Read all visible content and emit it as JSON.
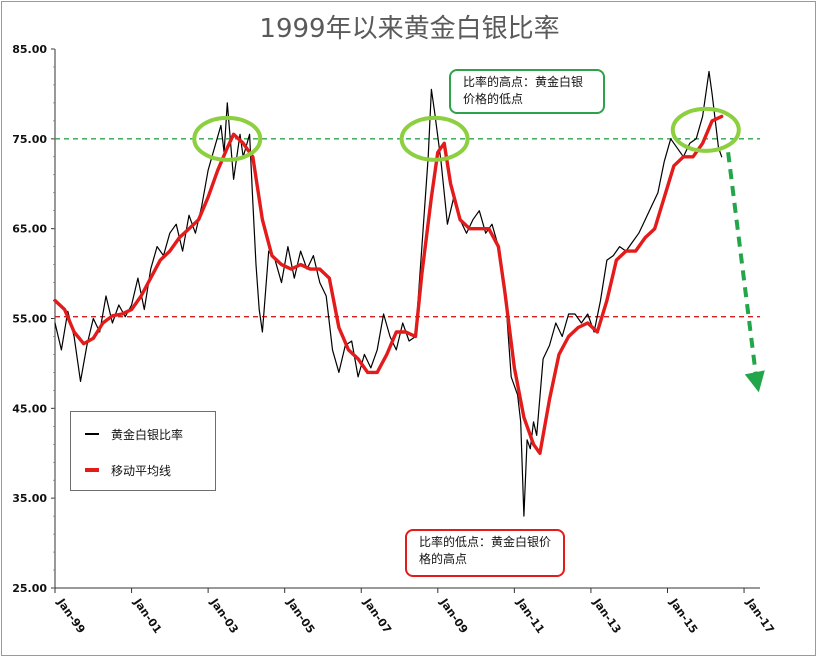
{
  "title": "1999年以来黄金白银比率",
  "legend": {
    "items": [
      {
        "label": "黄金白银比率",
        "color": "#000000"
      },
      {
        "label": "移动平均线",
        "color": "#e31b1b"
      }
    ]
  },
  "annotations": {
    "high_note": "比率的高点：黄金白银价格的低点",
    "low_note": "比率的低点：黄金白银价格的高点",
    "high_color": "#2ea24a",
    "low_color": "#e31b1b"
  },
  "chart_data": {
    "type": "line",
    "title": "1999年以来黄金白银比率",
    "xlabel": "",
    "ylabel": "",
    "x_tick_labels": [
      "Jan-99",
      "Jan-01",
      "Jan-03",
      "Jan-05",
      "Jan-07",
      "Jan-09",
      "Jan-11",
      "Jan-13",
      "Jan-15",
      "Jan-17"
    ],
    "y_tick_labels": [
      "25.00",
      "35.00",
      "45.00",
      "55.00",
      "65.00",
      "75.00",
      "85.00"
    ],
    "ylim": [
      25,
      85
    ],
    "xlim": [
      "1999-01",
      "2017-06"
    ],
    "grid": false,
    "legend_position": "bottom-left",
    "reference_lines": [
      {
        "y": 75,
        "color": "#2ea24a",
        "style": "dashed"
      },
      {
        "y": 55.2,
        "color": "#d42020",
        "style": "dashed"
      }
    ],
    "series": [
      {
        "name": "黄金白银比率",
        "color": "#000000",
        "points": [
          [
            "1999-01",
            54.5
          ],
          [
            "1999-03",
            51.5
          ],
          [
            "1999-05",
            55.8
          ],
          [
            "1999-07",
            53.0
          ],
          [
            "1999-09",
            48.0
          ],
          [
            "1999-11",
            52.0
          ],
          [
            "2000-01",
            55.0
          ],
          [
            "2000-03",
            53.5
          ],
          [
            "2000-05",
            57.5
          ],
          [
            "2000-07",
            54.5
          ],
          [
            "2000-09",
            56.5
          ],
          [
            "2000-11",
            55.2
          ],
          [
            "2001-01",
            56.5
          ],
          [
            "2001-03",
            59.5
          ],
          [
            "2001-05",
            56.0
          ],
          [
            "2001-07",
            60.5
          ],
          [
            "2001-09",
            63.0
          ],
          [
            "2001-11",
            62.0
          ],
          [
            "2002-01",
            64.5
          ],
          [
            "2002-03",
            65.5
          ],
          [
            "2002-05",
            62.5
          ],
          [
            "2002-07",
            66.5
          ],
          [
            "2002-09",
            64.5
          ],
          [
            "2002-11",
            67.5
          ],
          [
            "2003-01",
            71.5
          ],
          [
            "2003-03",
            74.0
          ],
          [
            "2003-05",
            76.5
          ],
          [
            "2003-06",
            73.5
          ],
          [
            "2003-07",
            79.0
          ],
          [
            "2003-09",
            70.5
          ],
          [
            "2003-11",
            75.5
          ],
          [
            "2003-12",
            73.0
          ],
          [
            "2004-02",
            75.5
          ],
          [
            "2004-03",
            68.0
          ],
          [
            "2004-04",
            61.0
          ],
          [
            "2004-05",
            56.0
          ],
          [
            "2004-06",
            53.5
          ],
          [
            "2004-08",
            62.5
          ],
          [
            "2004-10",
            61.5
          ],
          [
            "2004-12",
            59.0
          ],
          [
            "2005-02",
            63.0
          ],
          [
            "2005-04",
            59.5
          ],
          [
            "2005-06",
            62.5
          ],
          [
            "2005-08",
            60.5
          ],
          [
            "2005-10",
            62.0
          ],
          [
            "2005-12",
            59.0
          ],
          [
            "2006-02",
            57.5
          ],
          [
            "2006-04",
            51.5
          ],
          [
            "2006-06",
            49.0
          ],
          [
            "2006-08",
            52.0
          ],
          [
            "2006-10",
            52.5
          ],
          [
            "2006-12",
            48.5
          ],
          [
            "2007-02",
            51.0
          ],
          [
            "2007-04",
            49.5
          ],
          [
            "2007-06",
            51.5
          ],
          [
            "2007-08",
            55.5
          ],
          [
            "2007-10",
            53.0
          ],
          [
            "2007-12",
            51.5
          ],
          [
            "2008-02",
            54.5
          ],
          [
            "2008-04",
            52.5
          ],
          [
            "2008-06",
            53.0
          ],
          [
            "2008-08",
            63.0
          ],
          [
            "2008-10",
            73.0
          ],
          [
            "2008-11",
            80.5
          ],
          [
            "2008-12",
            78.0
          ],
          [
            "2009-02",
            72.5
          ],
          [
            "2009-04",
            65.5
          ],
          [
            "2009-06",
            68.5
          ],
          [
            "2009-08",
            66.0
          ],
          [
            "2009-10",
            64.5
          ],
          [
            "2009-12",
            66.0
          ],
          [
            "2010-02",
            67.0
          ],
          [
            "2010-04",
            64.5
          ],
          [
            "2010-06",
            65.5
          ],
          [
            "2010-08",
            63.0
          ],
          [
            "2010-10",
            58.5
          ],
          [
            "2010-12",
            48.5
          ],
          [
            "2011-02",
            46.5
          ],
          [
            "2011-03",
            43.5
          ],
          [
            "2011-04",
            33.0
          ],
          [
            "2011-05",
            41.5
          ],
          [
            "2011-06",
            40.5
          ],
          [
            "2011-07",
            43.5
          ],
          [
            "2011-08",
            42.0
          ],
          [
            "2011-10",
            50.5
          ],
          [
            "2011-12",
            52.0
          ],
          [
            "2012-02",
            54.5
          ],
          [
            "2012-04",
            53.0
          ],
          [
            "2012-06",
            55.5
          ],
          [
            "2012-08",
            55.5
          ],
          [
            "2012-10",
            54.5
          ],
          [
            "2012-12",
            55.5
          ],
          [
            "2013-02",
            53.5
          ],
          [
            "2013-04",
            57.0
          ],
          [
            "2013-06",
            61.5
          ],
          [
            "2013-08",
            62.0
          ],
          [
            "2013-10",
            63.0
          ],
          [
            "2013-12",
            62.5
          ],
          [
            "2014-02",
            63.5
          ],
          [
            "2014-04",
            64.5
          ],
          [
            "2014-06",
            66.0
          ],
          [
            "2014-08",
            67.5
          ],
          [
            "2014-10",
            69.0
          ],
          [
            "2014-12",
            72.5
          ],
          [
            "2015-02",
            75.0
          ],
          [
            "2015-04",
            74.0
          ],
          [
            "2015-06",
            73.0
          ],
          [
            "2015-08",
            74.5
          ],
          [
            "2015-10",
            75.0
          ],
          [
            "2015-12",
            77.5
          ],
          [
            "2016-02",
            82.5
          ],
          [
            "2016-03",
            80.0
          ],
          [
            "2016-05",
            74.0
          ],
          [
            "2016-06",
            73.0
          ]
        ]
      },
      {
        "name": "移动平均线",
        "color": "#e31b1b",
        "points": [
          [
            "1999-01",
            57.0
          ],
          [
            "1999-04",
            56.0
          ],
          [
            "1999-07",
            53.5
          ],
          [
            "1999-10",
            52.2
          ],
          [
            "2000-01",
            52.8
          ],
          [
            "2000-04",
            54.5
          ],
          [
            "2000-07",
            55.3
          ],
          [
            "2000-10",
            55.5
          ],
          [
            "2001-01",
            56.0
          ],
          [
            "2001-04",
            57.5
          ],
          [
            "2001-07",
            59.5
          ],
          [
            "2001-10",
            61.5
          ],
          [
            "2002-01",
            62.5
          ],
          [
            "2002-04",
            64.0
          ],
          [
            "2002-07",
            65.0
          ],
          [
            "2002-10",
            66.0
          ],
          [
            "2003-01",
            68.5
          ],
          [
            "2003-04",
            71.5
          ],
          [
            "2003-07",
            74.0
          ],
          [
            "2003-09",
            75.5
          ],
          [
            "2003-12",
            74.5
          ],
          [
            "2004-03",
            73.0
          ],
          [
            "2004-06",
            66.0
          ],
          [
            "2004-09",
            62.0
          ],
          [
            "2004-12",
            61.0
          ],
          [
            "2005-03",
            60.5
          ],
          [
            "2005-06",
            61.0
          ],
          [
            "2005-09",
            60.5
          ],
          [
            "2005-12",
            60.5
          ],
          [
            "2006-03",
            59.5
          ],
          [
            "2006-06",
            54.0
          ],
          [
            "2006-09",
            51.5
          ],
          [
            "2006-12",
            50.5
          ],
          [
            "2007-03",
            49.0
          ],
          [
            "2007-06",
            49.0
          ],
          [
            "2007-09",
            51.0
          ],
          [
            "2007-12",
            53.5
          ],
          [
            "2008-03",
            53.5
          ],
          [
            "2008-06",
            53.0
          ],
          [
            "2008-08",
            60.0
          ],
          [
            "2008-11",
            68.5
          ],
          [
            "2009-01",
            73.5
          ],
          [
            "2009-03",
            74.5
          ],
          [
            "2009-05",
            70.0
          ],
          [
            "2009-08",
            66.0
          ],
          [
            "2009-11",
            65.0
          ],
          [
            "2010-02",
            65.0
          ],
          [
            "2010-05",
            65.0
          ],
          [
            "2010-08",
            63.0
          ],
          [
            "2010-10",
            58.0
          ],
          [
            "2011-01",
            49.5
          ],
          [
            "2011-04",
            44.0
          ],
          [
            "2011-07",
            41.0
          ],
          [
            "2011-09",
            40.0
          ],
          [
            "2011-12",
            46.0
          ],
          [
            "2012-03",
            51.0
          ],
          [
            "2012-06",
            53.0
          ],
          [
            "2012-09",
            54.0
          ],
          [
            "2012-12",
            54.5
          ],
          [
            "2013-03",
            53.5
          ],
          [
            "2013-06",
            57.0
          ],
          [
            "2013-09",
            61.5
          ],
          [
            "2013-12",
            62.5
          ],
          [
            "2014-03",
            62.5
          ],
          [
            "2014-06",
            64.0
          ],
          [
            "2014-09",
            65.0
          ],
          [
            "2014-12",
            68.5
          ],
          [
            "2015-03",
            72.0
          ],
          [
            "2015-06",
            73.0
          ],
          [
            "2015-09",
            73.0
          ],
          [
            "2015-12",
            74.5
          ],
          [
            "2016-03",
            77.0
          ],
          [
            "2016-06",
            77.5
          ]
        ]
      }
    ]
  }
}
